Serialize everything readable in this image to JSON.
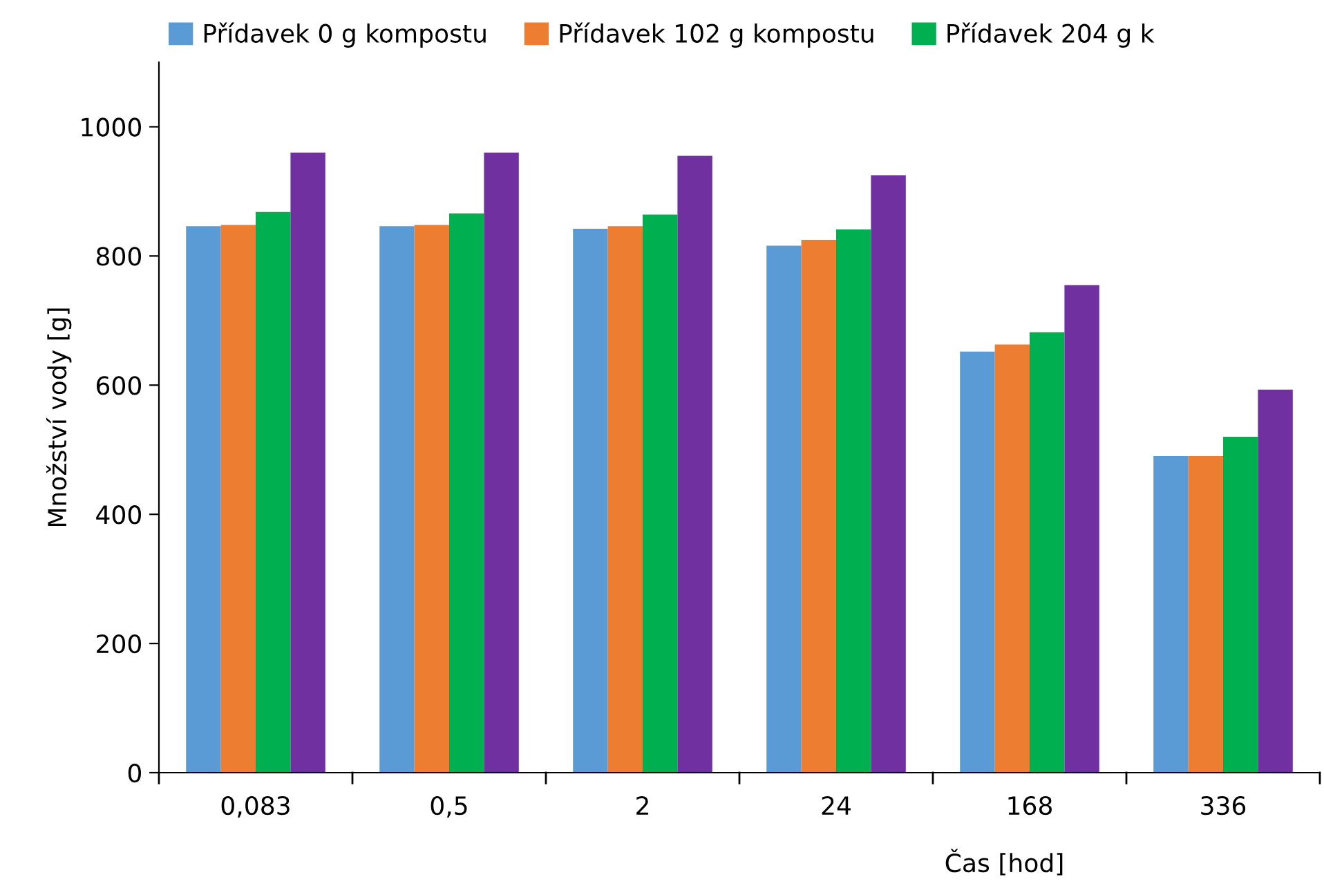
{
  "chart_data": {
    "type": "bar",
    "xlabel": "Čas [hod]",
    "ylabel": "Množství vody [g]",
    "categories": [
      "0,083",
      "0,5",
      "2",
      "24",
      "168",
      "336"
    ],
    "series": [
      {
        "name": "Přídavek 0 g kompostu",
        "color": "#5b9bd5",
        "values": [
          846,
          846,
          842,
          816,
          652,
          490
        ]
      },
      {
        "name": "Přídavek 102 g kompostu",
        "color": "#ed7d31",
        "values": [
          848,
          848,
          846,
          825,
          663,
          490
        ]
      },
      {
        "name": "Přídavek 204 g k",
        "color": "#00b050",
        "values": [
          868,
          866,
          864,
          841,
          682,
          520
        ]
      },
      {
        "color": "#7030a0",
        "values": [
          960,
          960,
          955,
          925,
          755,
          593
        ]
      }
    ],
    "ylim": [
      0,
      1100
    ],
    "yticks": [
      0,
      200,
      400,
      600,
      800,
      1000
    ],
    "grid": false,
    "legend": "top"
  }
}
